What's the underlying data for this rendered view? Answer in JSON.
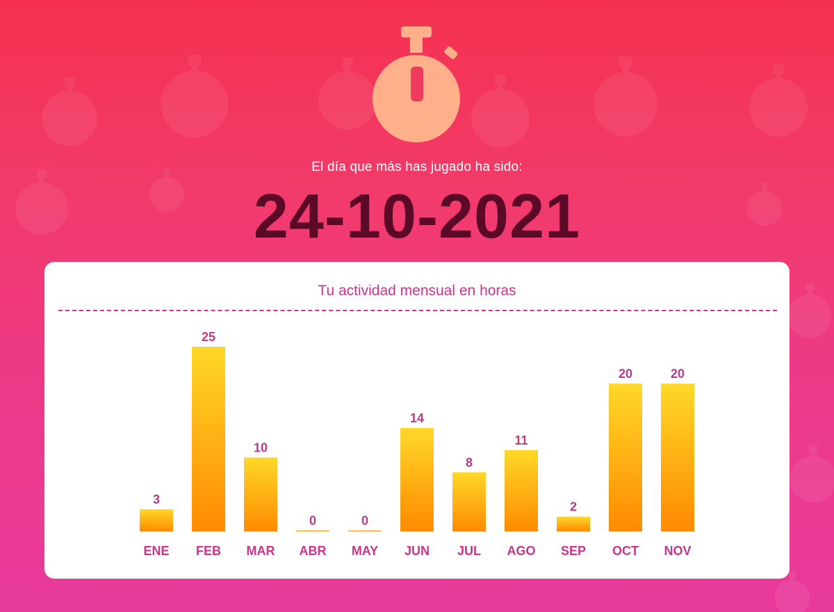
{
  "header": {
    "subtitle": "El día que más has jugado ha sido:",
    "date": "24-10-2021",
    "icon": "stopwatch-icon"
  },
  "colors": {
    "background_top": "#f5314f",
    "background_bottom": "#e83a9c",
    "date_text": "#5a0a26",
    "icon_fill": "#ffb08a",
    "bar_top": "#ffd829",
    "bar_bottom": "#ff8a00",
    "accent_text": "#c8348a"
  },
  "chart_data": {
    "type": "bar",
    "title": "Tu actividad mensual en horas",
    "categories": [
      "ENE",
      "FEB",
      "MAR",
      "ABR",
      "MAY",
      "JUN",
      "JUL",
      "AGO",
      "SEP",
      "OCT",
      "NOV"
    ],
    "values": [
      3,
      25,
      10,
      0,
      0,
      14,
      8,
      11,
      2,
      20,
      20
    ],
    "ylim": [
      0,
      25
    ],
    "grid": false,
    "legend": "none"
  }
}
